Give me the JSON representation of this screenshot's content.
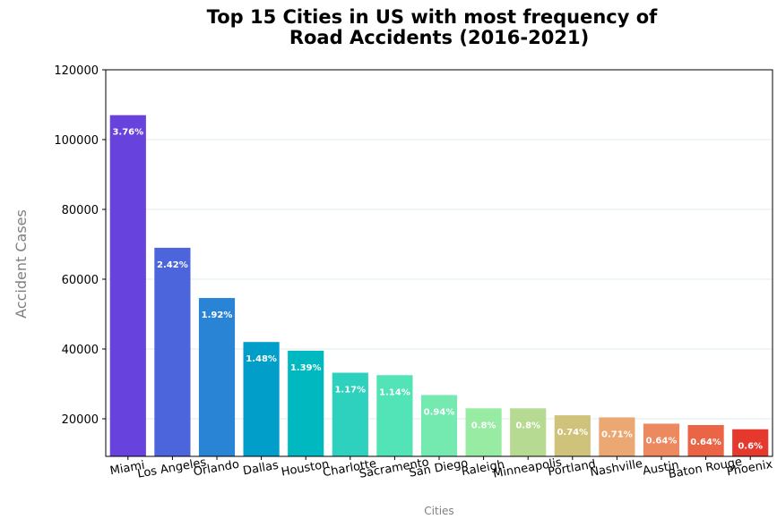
{
  "chart_data": {
    "type": "bar",
    "title_line1": "Top 15 Cities in US with most frequency of",
    "title_line2": "Road Accidents (2016-2021)",
    "xlabel": "Cities",
    "ylabel": "Accident Cases",
    "ylim": [
      0,
      120000
    ],
    "yticks": [
      20000,
      40000,
      60000,
      80000,
      100000,
      120000
    ],
    "grid": "horizontal",
    "categories": [
      "Miami",
      "Los Angeles",
      "Orlando",
      "Dallas",
      "Houston",
      "Charlotte",
      "Sacramento",
      "San Diego",
      "Raleigh",
      "Minneapolis",
      "Portland",
      "Nashville",
      "Austin",
      "Baton Rouge",
      "Phoenix"
    ],
    "values": [
      107000,
      69000,
      54600,
      42000,
      39500,
      33200,
      32500,
      26800,
      23000,
      23000,
      21000,
      20400,
      18600,
      18200,
      17000
    ],
    "percent_labels": [
      "3.76%",
      "2.42%",
      "1.92%",
      "1.48%",
      "1.39%",
      "1.17%",
      "1.14%",
      "0.94%",
      "0.8%",
      "0.8%",
      "0.74%",
      "0.71%",
      "0.64%",
      "0.64%",
      "0.6%"
    ],
    "colors": [
      "#6842dc",
      "#4c64dc",
      "#2a84d6",
      "#009ec8",
      "#00b8c0",
      "#2ed1bd",
      "#52e3b6",
      "#74eab0",
      "#98eba2",
      "#b6da92",
      "#cfc27a",
      "#eca872",
      "#ec895e",
      "#ec6446",
      "#e6392e"
    ]
  }
}
